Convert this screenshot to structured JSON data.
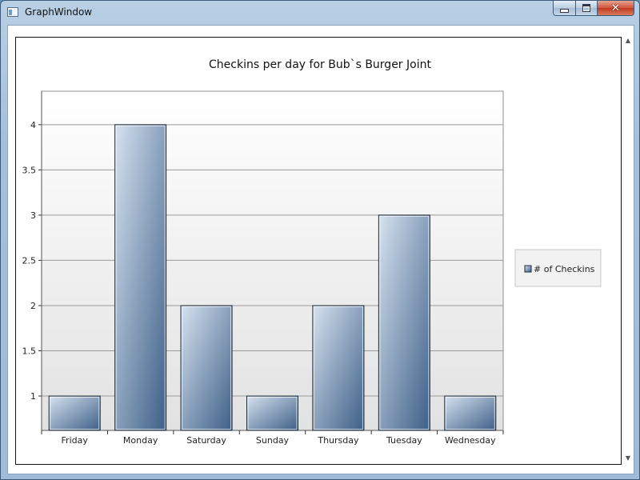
{
  "window": {
    "title": "GraphWindow",
    "close_glyph": "✕"
  },
  "chart_data": {
    "type": "bar",
    "title": "Checkins per day for Bub`s Burger Joint",
    "categories": [
      "Friday",
      "Monday",
      "Saturday",
      "Sunday",
      "Thursday",
      "Tuesday",
      "Wednesday"
    ],
    "series": [
      {
        "name": "# of Checkins",
        "values": [
          1,
          4,
          2,
          1,
          2,
          3,
          1
        ]
      }
    ],
    "y_ticks": [
      "1",
      "1.5",
      "2",
      "2.5",
      "3",
      "3.5",
      "4"
    ],
    "ylim": [
      0.62,
      4.37
    ],
    "grid": true,
    "legend_position": "right",
    "bar_color_light": "#d6e2f0",
    "bar_color_dark": "#3d5f87"
  }
}
